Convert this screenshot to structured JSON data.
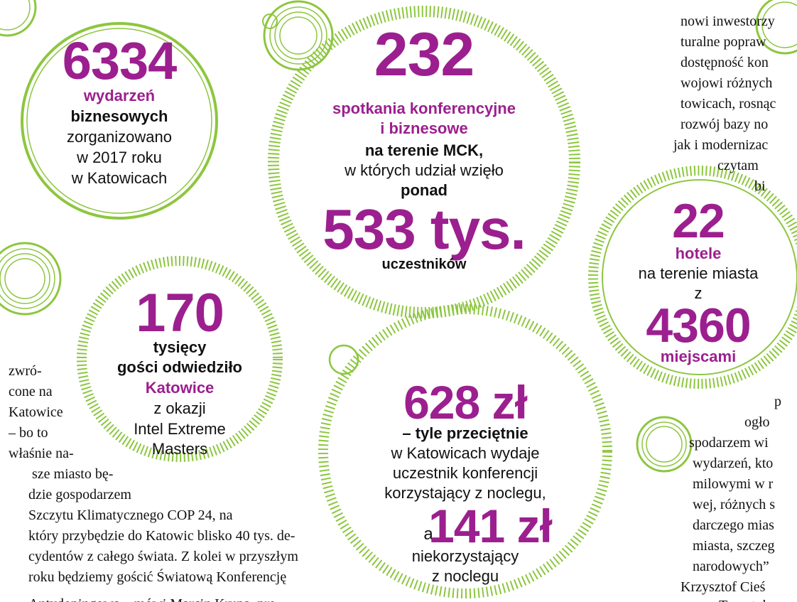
{
  "circles": [
    {
      "lines": [
        "6334",
        "wydarzeń",
        "biznesowych",
        "zorganizowano",
        "w 2017 roku",
        "w Katowicach"
      ]
    },
    {
      "lines": [
        "232",
        "spotkania konferencyjne",
        "i biznesowe",
        "na terenie MCK,",
        "w których udział wzięło",
        "ponad",
        "533 tys.",
        "uczestników"
      ]
    },
    {
      "lines": [
        "170",
        "tysięcy",
        "gości odwiedziło",
        "Katowice",
        "z okazji",
        "Intel Extreme",
        "Masters"
      ]
    },
    {
      "lines": [
        "22",
        "hotele",
        "na terenie miasta",
        "z",
        "4360",
        "miejscami"
      ]
    },
    {
      "lines": [
        "628 zł",
        "– tyle przeciętnie",
        "w Katowicach wydaje",
        "uczestnik konferencji",
        "korzystający z noclegu,",
        "a",
        "141 zł",
        "niekorzystający",
        "z noclegu"
      ]
    }
  ],
  "body": {
    "left_column": [
      "zwró-",
      "cone na",
      "Katowice",
      "– bo to",
      "właśnie na-",
      "sze miasto bę-",
      "dzie gospodarzem",
      "Szczytu Klimatycznego COP 24, na",
      "który przybędzie do Katowic blisko 40 tys. de-",
      "cydentów z całego świata. Z kolei w przyszłym",
      "roku będziemy gościć Światową Konferencję",
      "Antydopingową – mówi Marcin Krupa, pre-"
    ],
    "right_column_top": [
      "nowi inwestorzy",
      "turalne popraw",
      "dostępność kon",
      "wojowi różnych",
      "towicach, rosnąc",
      "rozwój bazy no",
      "jak i modernizac",
      "czytam",
      "bi"
    ],
    "right_column_bottom": [
      "p",
      "ogło",
      "spodarzem wi",
      "wydarzeń, kto",
      "milowymi w r",
      "wej, różnych s",
      "darczego mias",
      "miasta, szczeg",
      "narodowych”",
      "Krzysztof Cieś",
      "Turystyka"
    ]
  }
}
